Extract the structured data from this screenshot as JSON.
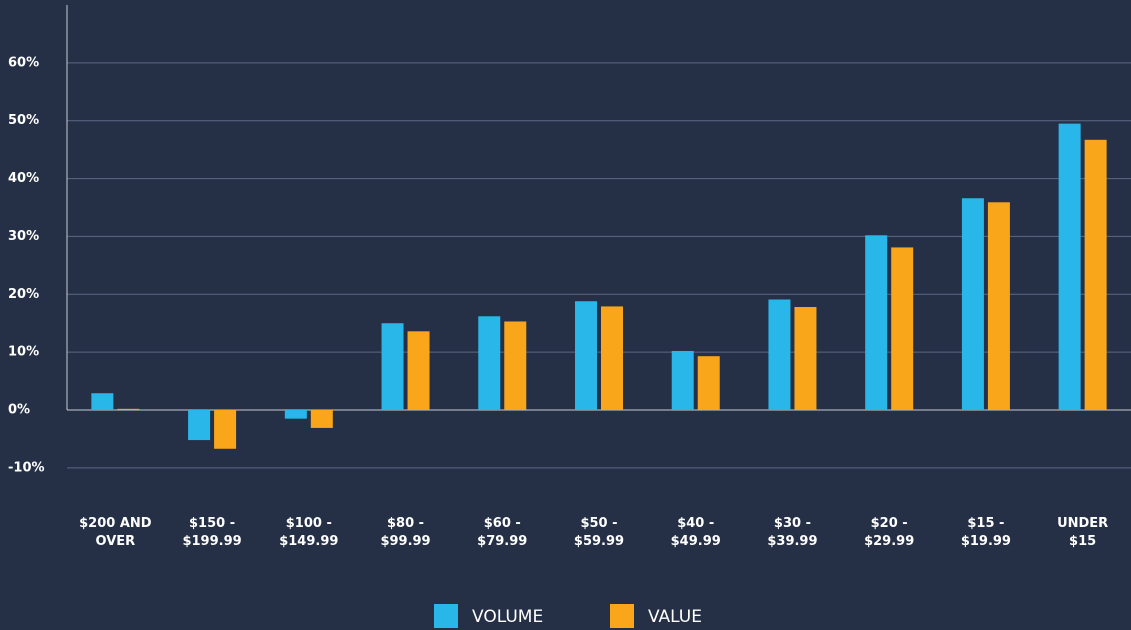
{
  "chart_data": {
    "type": "bar",
    "categories": [
      "$200 AND\nOVER",
      "$150 -\n$199.99",
      "$100 -\n$149.99",
      "$80 -\n$99.99",
      "$60 -\n$79.99",
      "$50 -\n$59.99",
      "$40 -\n$49.99",
      "$30 -\n$39.99",
      "$20 -\n$29.99",
      "$15 -\n$19.99",
      "UNDER\n$15"
    ],
    "series": [
      {
        "name": "VOLUME",
        "color": "#29b6e8",
        "values": [
          2.9,
          -5.2,
          -1.5,
          15.0,
          16.2,
          18.8,
          10.2,
          19.1,
          30.2,
          36.6,
          49.5
        ]
      },
      {
        "name": "VALUE",
        "color": "#f9a61a",
        "values": [
          0.2,
          -6.7,
          -3.1,
          13.6,
          15.3,
          17.9,
          9.3,
          17.8,
          28.1,
          35.9,
          46.7
        ]
      }
    ],
    "ylim": [
      -14,
      70
    ],
    "yticks": [
      {
        "value": -10,
        "label": "-10%"
      },
      {
        "value": 0,
        "label": "0%"
      },
      {
        "value": 10,
        "label": "10%"
      },
      {
        "value": 20,
        "label": "20%"
      },
      {
        "value": 30,
        "label": "30%"
      },
      {
        "value": 40,
        "label": "40%"
      },
      {
        "value": 50,
        "label": "50%"
      },
      {
        "value": 60,
        "label": "60%"
      }
    ],
    "grid": true,
    "legend": "bottom"
  }
}
